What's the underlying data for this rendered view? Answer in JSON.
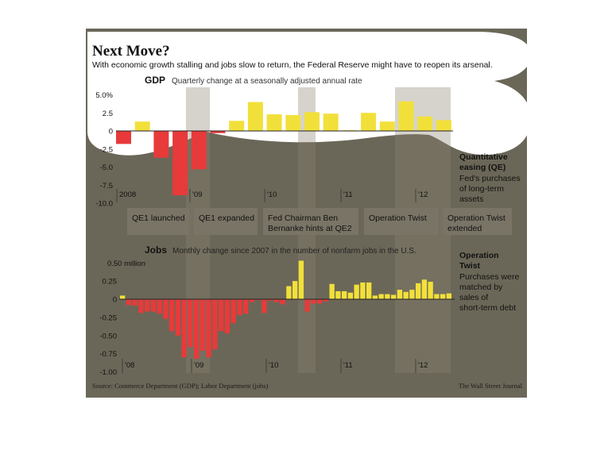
{
  "header": {
    "title": "Next Move?",
    "subtitle": "With economic growth stalling and jobs slow to return, the Federal Reserve might have to reopen its arsenal."
  },
  "gdp": {
    "label": "GDP",
    "description": "Quarterly change at a seasonally adjusted annual rate"
  },
  "jobs": {
    "label": "Jobs",
    "description": "Monthly change since 2007 in the number of nonfarm jobs in the U.S."
  },
  "events": [
    {
      "label": "QE1 launched"
    },
    {
      "label": "QE1 expanded"
    },
    {
      "label": "Fed Chairman Ben Bernanke hints at QE2",
      "lines": [
        "Fed Chairman Ben",
        "Bernanke hints at QE2"
      ]
    },
    {
      "label": "Operation Twist"
    },
    {
      "label": "Operation Twist extended",
      "lines": [
        "Operation Twist",
        "extended"
      ]
    }
  ],
  "legend": {
    "qe_title_lines": [
      "Quantitative",
      "easing (QE)"
    ],
    "qe_desc_lines": [
      "Fed's purchases",
      "of long-term",
      "assets"
    ],
    "twist_title_lines": [
      "Operation",
      "Twist"
    ],
    "twist_desc_lines": [
      "Purchases were",
      "matched by",
      "sales of",
      "short-term debt"
    ]
  },
  "footer": {
    "source": "Source: Commerce Department (GDP); Labor Department (jobs)",
    "credit": "The Wall Street Journal"
  },
  "colors": {
    "background": "#6b6758",
    "positive_bar": "#f2e03a",
    "negative_bar": "#e83a3a",
    "highlight_blob": "#ffffff",
    "panel_overlay": "#8a8270"
  },
  "chart_data": [
    {
      "type": "bar",
      "title": "GDP",
      "subtitle": "Quarterly change at a seasonally adjusted annual rate",
      "x": [
        "2008 Q1",
        "2008 Q2",
        "2008 Q3",
        "2008 Q4",
        "2009 Q1",
        "2009 Q2",
        "2009 Q3",
        "2009 Q4",
        "2010 Q1",
        "2010 Q2",
        "2010 Q3",
        "2010 Q4",
        "2011 Q1",
        "2011 Q2",
        "2011 Q3",
        "2011 Q4",
        "2012 Q1",
        "2012 Q2"
      ],
      "values": [
        -1.8,
        1.3,
        -3.7,
        -8.9,
        -5.3,
        -0.3,
        1.4,
        4.0,
        2.3,
        2.2,
        2.6,
        2.4,
        0.1,
        2.5,
        1.3,
        4.1,
        2.0,
        1.5
      ],
      "ylim": [
        -10.0,
        5.0
      ],
      "yticks": [
        "5.0%",
        "2.5",
        "0",
        "-2.5",
        "-5.0",
        "-7.5",
        "-10.0"
      ],
      "xticks": [
        "2008",
        "'09",
        "'10",
        "'11",
        "'12"
      ],
      "grid": false
    },
    {
      "type": "bar",
      "title": "Jobs",
      "subtitle": "Monthly change since 2007 in the number of nonfarm jobs in the U.S.",
      "unit": "million",
      "values": [
        0.05,
        -0.08,
        -0.09,
        -0.19,
        -0.17,
        -0.17,
        -0.2,
        -0.27,
        -0.44,
        -0.5,
        -0.8,
        -0.66,
        -0.82,
        -0.71,
        -0.8,
        -0.69,
        -0.44,
        -0.47,
        -0.33,
        -0.22,
        -0.2,
        -0.04,
        -0.01,
        -0.19,
        -0.02,
        -0.04,
        -0.07,
        0.18,
        0.25,
        0.53,
        -0.17,
        -0.06,
        -0.06,
        -0.03,
        0.21,
        0.11,
        0.11,
        0.09,
        0.2,
        0.23,
        0.23,
        0.05,
        0.07,
        0.07,
        0.06,
        0.13,
        0.1,
        0.13,
        0.22,
        0.27,
        0.24,
        0.07,
        0.07,
        0.08
      ],
      "ylim": [
        -1.0,
        0.5
      ],
      "yticks": [
        "0.50 million",
        "0.25",
        "0",
        "-0.25",
        "-0.50",
        "-0.75",
        "-1.00"
      ],
      "xticks": [
        "'08",
        "'09",
        "'10",
        "'11",
        "'12"
      ],
      "grid": false
    }
  ]
}
